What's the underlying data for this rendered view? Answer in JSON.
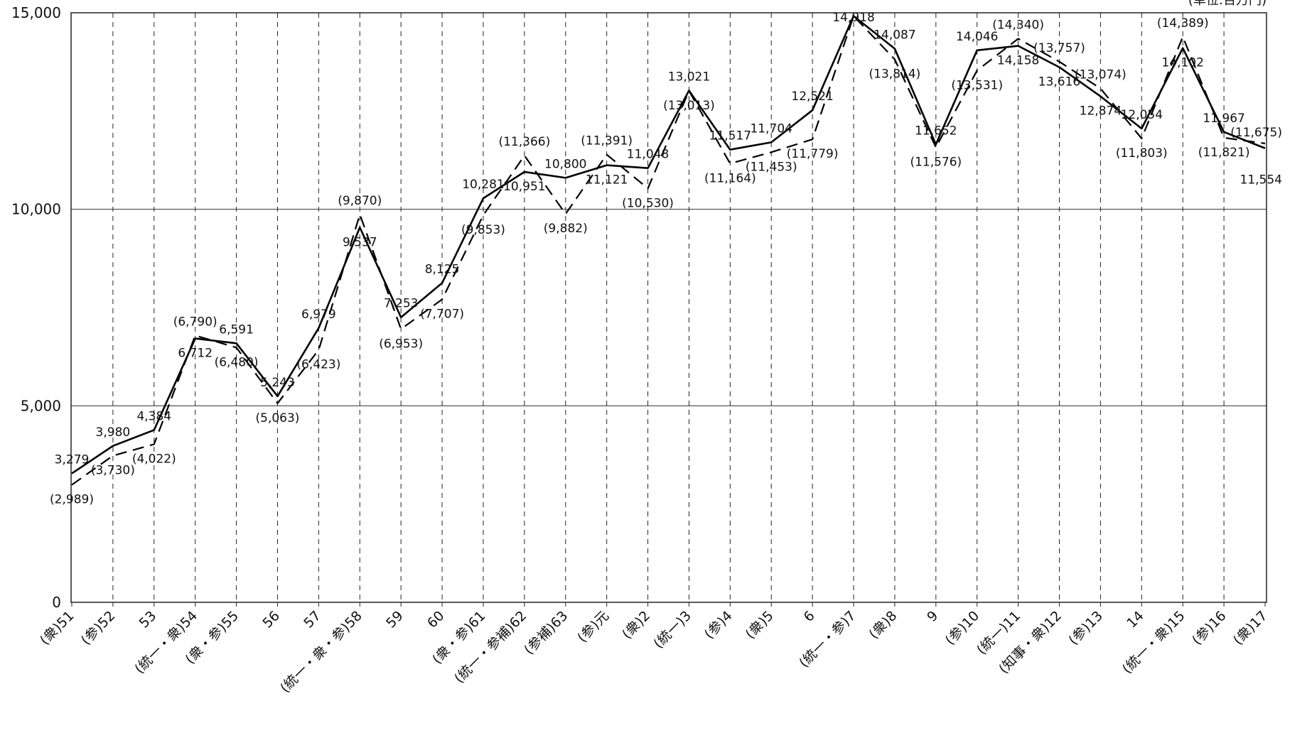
{
  "chart_data": {
    "type": "line",
    "unit_label": "(単位:百万円)",
    "y_ticks": [
      "0",
      "5,000",
      "10,000",
      "15,000"
    ],
    "ylim": [
      0,
      15000
    ],
    "grid": "horizontal solid lines at 5,000 steps; vertical dashed lines at each year",
    "categories": [
      {
        "year": "51",
        "note": "(衆)"
      },
      {
        "year": "52",
        "note": "(参)"
      },
      {
        "year": "53",
        "note": ""
      },
      {
        "year": "54",
        "note": "(統一・衆)"
      },
      {
        "year": "55",
        "note": "(衆・参)"
      },
      {
        "year": "56",
        "note": ""
      },
      {
        "year": "57",
        "note": ""
      },
      {
        "year": "58",
        "note": "(統一・衆・参)"
      },
      {
        "year": "59",
        "note": ""
      },
      {
        "year": "60",
        "note": ""
      },
      {
        "year": "61",
        "note": "(衆・参)"
      },
      {
        "year": "62",
        "note": "(統一・参補)"
      },
      {
        "year": "63",
        "note": "(参補)"
      },
      {
        "year": "元",
        "note": "(参)"
      },
      {
        "year": "2",
        "note": "(衆)"
      },
      {
        "year": "3",
        "note": "(統一)"
      },
      {
        "year": "4",
        "note": "(参)"
      },
      {
        "year": "5",
        "note": "(衆)"
      },
      {
        "year": "6",
        "note": ""
      },
      {
        "year": "7",
        "note": "(統一・参)"
      },
      {
        "year": "8",
        "note": "(衆)"
      },
      {
        "year": "9",
        "note": ""
      },
      {
        "year": "10",
        "note": "(参)"
      },
      {
        "year": "11",
        "note": "(統一)"
      },
      {
        "year": "12",
        "note": "(知事・衆)"
      },
      {
        "year": "13",
        "note": "(参)"
      },
      {
        "year": "14",
        "note": ""
      },
      {
        "year": "15",
        "note": "(統一・衆)"
      },
      {
        "year": "16",
        "note": "(参)"
      },
      {
        "year": "17",
        "note": "(衆)"
      }
    ],
    "series": [
      {
        "style": "solid",
        "values": [
          3279,
          3980,
          4384,
          6712,
          6591,
          5243,
          6979,
          9537,
          7253,
          8125,
          10281,
          10951,
          10800,
          11121,
          11048,
          13021,
          11517,
          11704,
          12521,
          14918,
          14087,
          11652,
          14046,
          14158,
          13616,
          12874,
          12054,
          14102,
          11967,
          11554
        ],
        "labels": [
          "3,279",
          "3,980",
          "4,384",
          "6,712",
          "6,591",
          "5,243",
          "6,979",
          "9,537",
          "7,253",
          "8,125",
          "10,281",
          "10,951",
          "10,800",
          "11,121",
          "11,048",
          "13,021",
          "11,517",
          "11,704",
          "12,521",
          "14,918",
          "14,087",
          "11,652",
          "14,046",
          "14,158",
          "13,616",
          "12,874",
          "12,054",
          "14,102",
          "11,967",
          "11,554"
        ]
      },
      {
        "style": "dashed",
        "values": [
          2989,
          3730,
          4022,
          6790,
          6480,
          5063,
          6423,
          9870,
          6953,
          7707,
          9853,
          11366,
          9882,
          11391,
          10530,
          13013,
          11164,
          11453,
          11779,
          14918,
          13814,
          11576,
          13531,
          14340,
          13757,
          13074,
          11803,
          14389,
          11821,
          11675
        ],
        "labels": [
          "(2,989)",
          "(3,730)",
          "(4,022)",
          "(6,790)",
          "(6,480)",
          "(5,063)",
          "(6,423)",
          "(9,870)",
          "(6,953)",
          "(7,707)",
          "(9,853)",
          "(11,366)",
          "(9,882)",
          "(11,391)",
          "(10,530)",
          "(13,013)",
          "(11,164)",
          "(11,453)",
          "(11,779)",
          "",
          "(13,814)",
          "(11,576)",
          "(13,531)",
          "(14,340)",
          "(13,757)",
          "(13,074)",
          "(11,803)",
          "(14,389)",
          "(11,821)",
          "(11,675)"
        ]
      }
    ]
  }
}
